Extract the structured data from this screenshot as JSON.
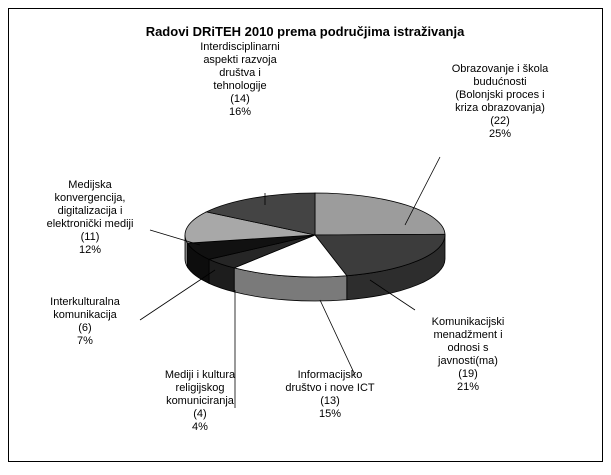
{
  "chart_data": {
    "type": "pie3d",
    "title": "Radovi DRiTEH 2010 prema područjima istraživanja",
    "categories": [
      "Obrazovanje i škola\nbudućnosti\n(Bolonjski proces i\nkriza obrazovanja)",
      "Komunikacijski\nmenadžment i\nodnosi s\njavnosti(ma)",
      "Informacijsko\ndruštvo i nove ICT",
      "Mediji i kultura\nreligijskog\nkomuniciranja",
      "Interkulturalna\nkomunikacija",
      "Medijska\nkonvergencija,\ndigitalizacija i\nelektronički mediji",
      "Interdisciplinarni\naspekti razvoja\ndruštva i\ntehnologije"
    ],
    "values": [
      22,
      19,
      13,
      4,
      6,
      11,
      14
    ],
    "value_labels": [
      "(22)",
      "(19)",
      "(13)",
      "(4)",
      "(6)",
      "(11)",
      "(14)"
    ],
    "percentages": [
      25,
      21,
      15,
      4,
      7,
      12,
      16
    ],
    "percentage_labels": [
      "25%",
      "21%",
      "15%",
      "4%",
      "7%",
      "12%",
      "16%"
    ],
    "colors": [
      "#9c9c9c",
      "#3c3c3c",
      "#ffffff",
      "#262626",
      "#111111",
      "#a8a8a8",
      "#444444"
    ]
  }
}
